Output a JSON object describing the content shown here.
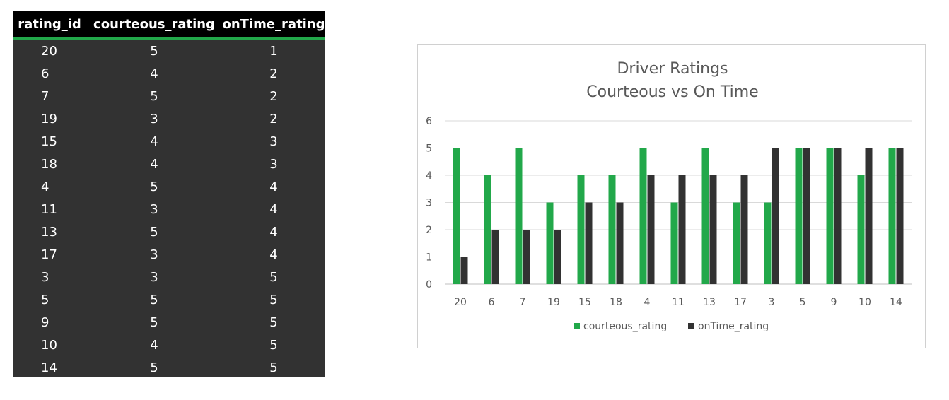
{
  "table": {
    "headers": [
      "rating_id",
      "courteous_rating",
      "onTime_rating"
    ],
    "rows": [
      [
        "20",
        "5",
        "1"
      ],
      [
        "6",
        "4",
        "2"
      ],
      [
        "7",
        "5",
        "2"
      ],
      [
        "19",
        "3",
        "2"
      ],
      [
        "15",
        "4",
        "3"
      ],
      [
        "18",
        "4",
        "3"
      ],
      [
        "4",
        "5",
        "4"
      ],
      [
        "11",
        "3",
        "4"
      ],
      [
        "13",
        "5",
        "4"
      ],
      [
        "17",
        "3",
        "4"
      ],
      [
        "3",
        "3",
        "5"
      ],
      [
        "5",
        "5",
        "5"
      ],
      [
        "9",
        "5",
        "5"
      ],
      [
        "10",
        "4",
        "5"
      ],
      [
        "14",
        "5",
        "5"
      ]
    ],
    "colors": {
      "background": "#323232",
      "header_background": "#000000",
      "header_rule": "#22a84a",
      "text": "#ffffff"
    }
  },
  "chart_data": {
    "type": "bar",
    "title": [
      "Driver Ratings",
      "Courteous vs On Time"
    ],
    "xlabel": "",
    "ylabel": "",
    "categories": [
      "20",
      "6",
      "7",
      "19",
      "15",
      "18",
      "4",
      "11",
      "13",
      "17",
      "3",
      "5",
      "9",
      "10",
      "14"
    ],
    "series": [
      {
        "name": "courteous_rating",
        "color": "#22a84a",
        "values": [
          5,
          4,
          5,
          3,
          4,
          4,
          5,
          3,
          5,
          3,
          3,
          5,
          5,
          4,
          5
        ]
      },
      {
        "name": "onTime_rating",
        "color": "#323232",
        "values": [
          1,
          2,
          2,
          2,
          3,
          3,
          4,
          4,
          4,
          4,
          5,
          5,
          5,
          5,
          5
        ]
      }
    ],
    "ylim": [
      0,
      6
    ],
    "yticks": [
      0,
      1,
      2,
      3,
      4,
      5,
      6
    ],
    "grid": true,
    "legend_position": "bottom"
  }
}
